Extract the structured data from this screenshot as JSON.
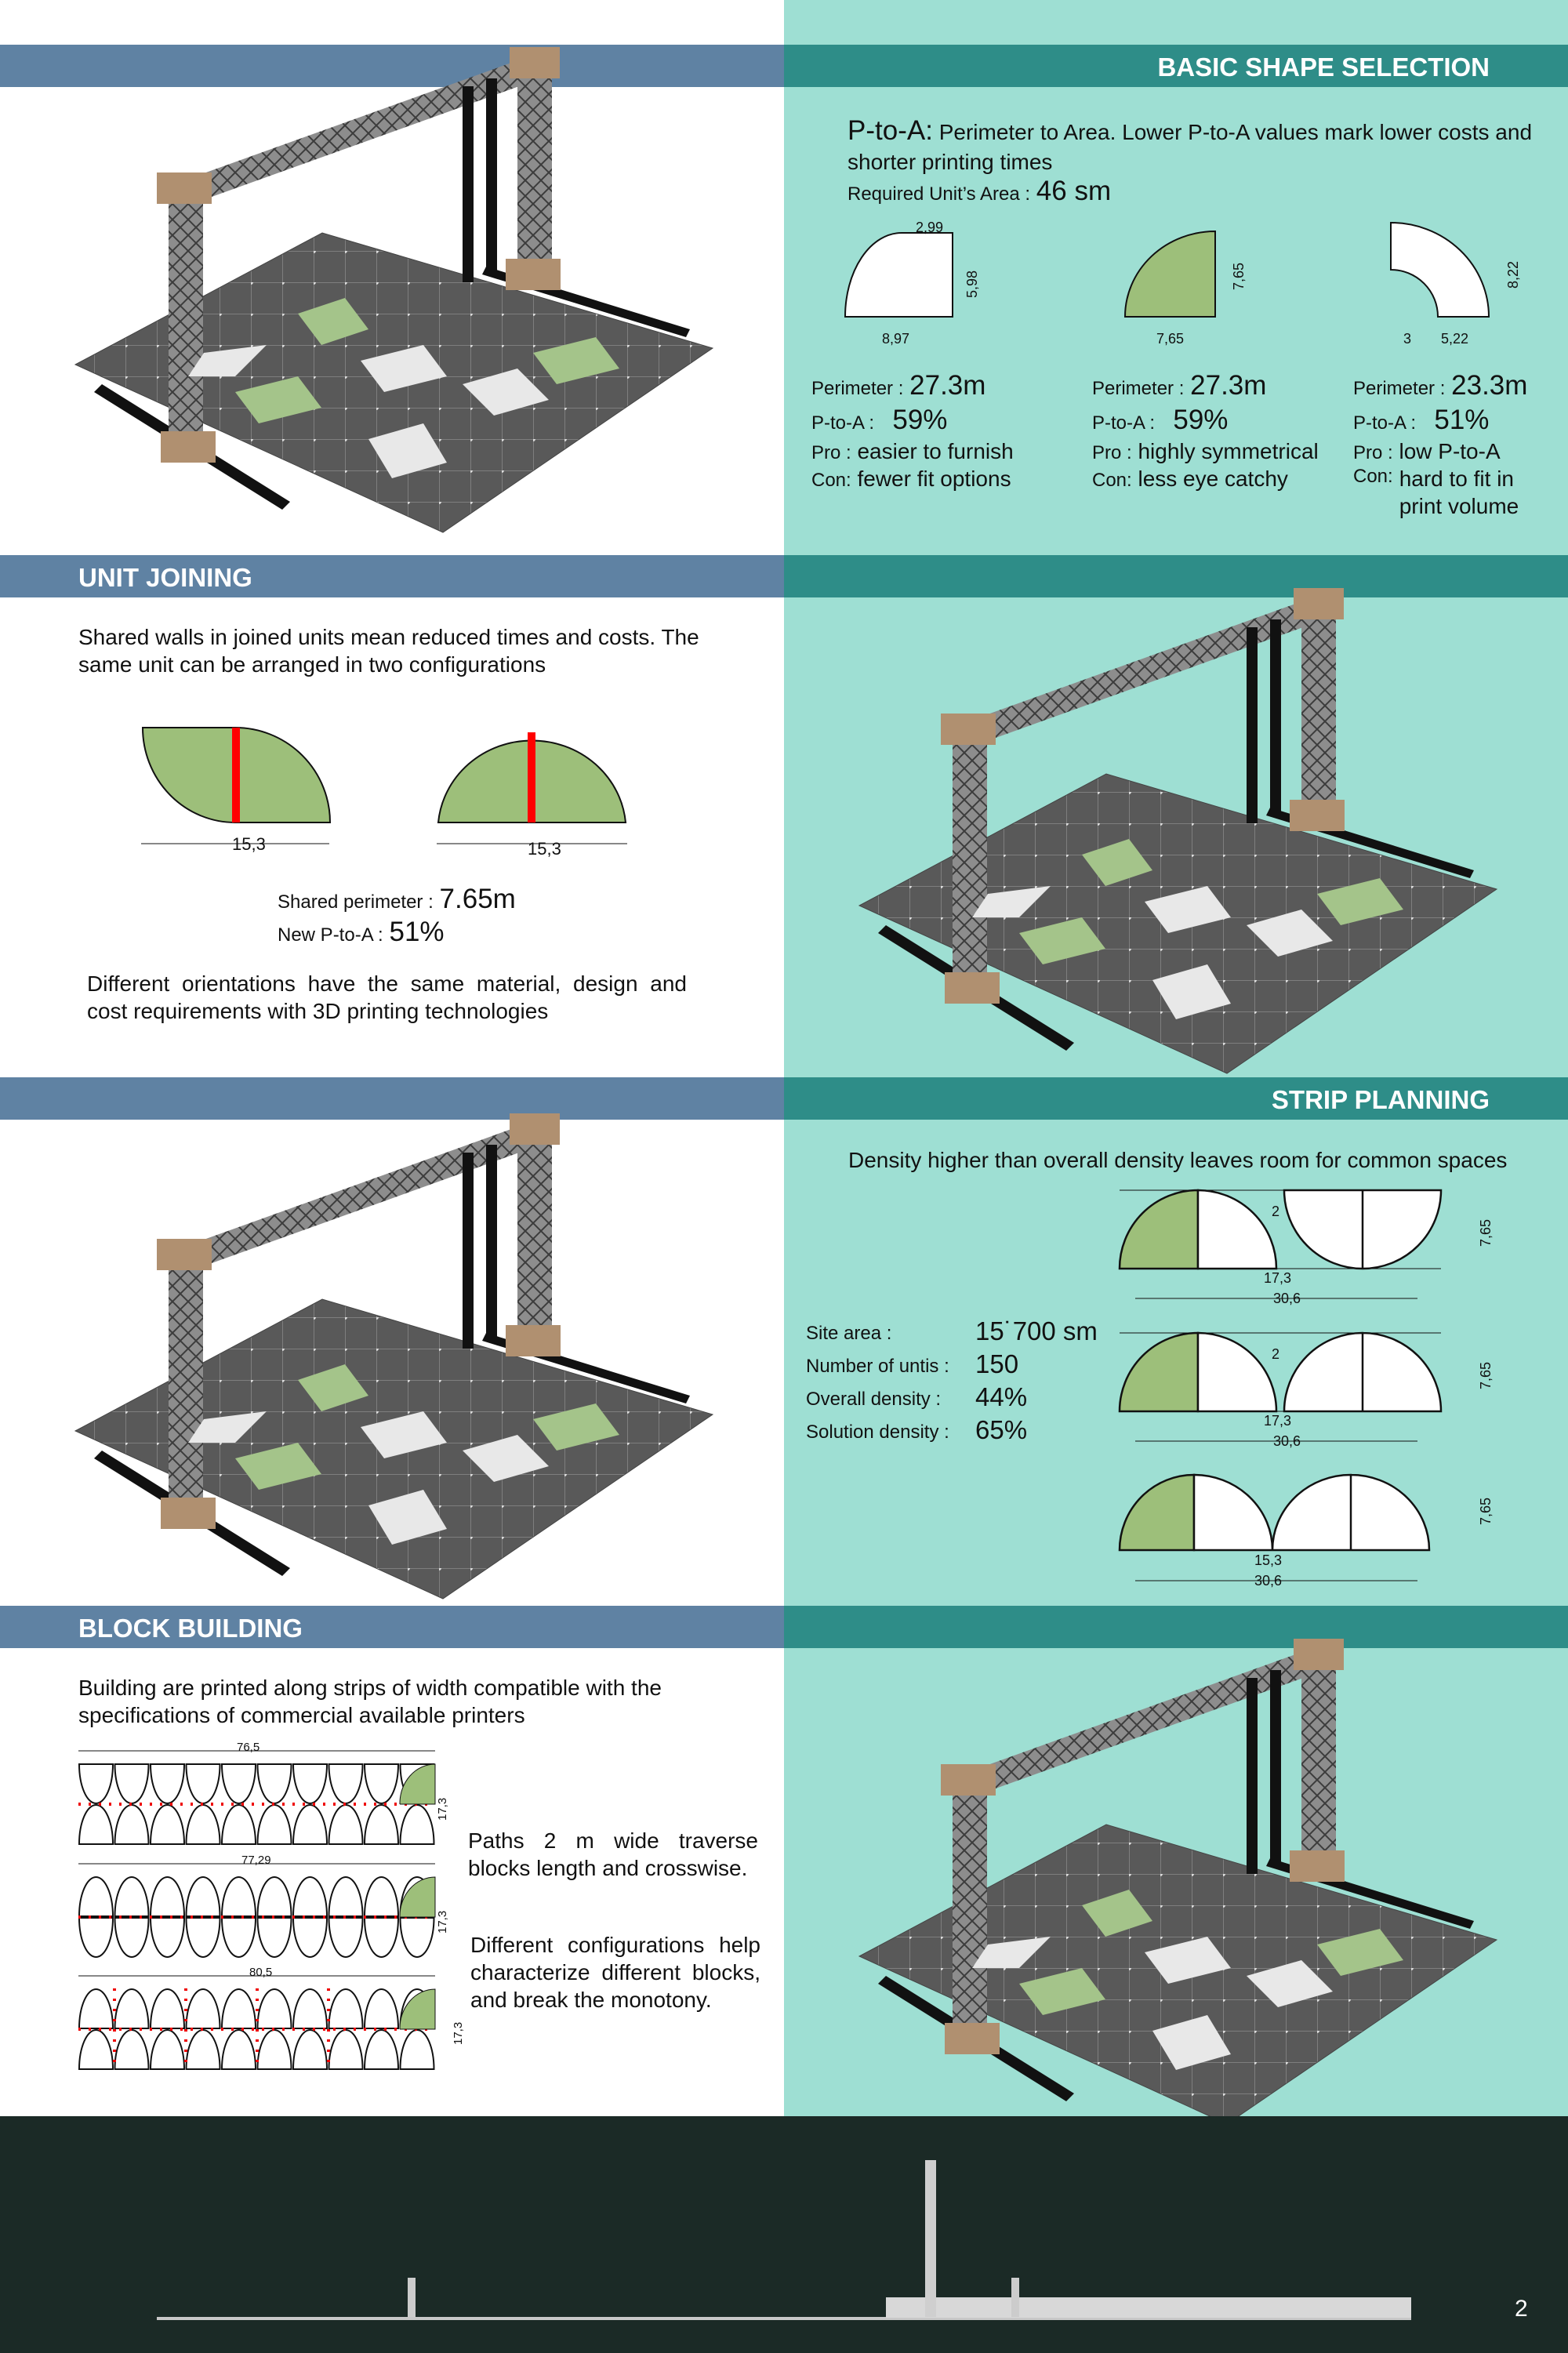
{
  "page_number": "2",
  "basic_shape": {
    "title": "BASIC SHAPE SELECTION",
    "term": "P-to-A:",
    "definition": "Perimeter to Area. Lower P-to-A values mark lower costs and shorter printing times",
    "area_label": "Required Unit’s Area :",
    "area_value": "46 sm",
    "shapes": [
      {
        "dims": [
          "2,99",
          "5,98",
          "8,97"
        ],
        "perimeter_label": "Perimeter :",
        "perimeter": "27.3m",
        "pta_label": "P-to-A :",
        "pta": "59%",
        "pro_label": "Pro :",
        "pro": "easier to furnish",
        "con_label": "Con:",
        "con": "fewer fit options"
      },
      {
        "dims": [
          "7,65",
          "7,65"
        ],
        "perimeter_label": "Perimeter :",
        "perimeter": "27.3m",
        "pta_label": "P-to-A :",
        "pta": "59%",
        "pro_label": "Pro :",
        "pro": "highly symmetrical",
        "con_label": "Con:",
        "con": "less eye catchy"
      },
      {
        "dims": [
          "8,22",
          "3",
          "5,22"
        ],
        "perimeter_label": "Perimeter :",
        "perimeter": "23.3m",
        "pta_label": "P-to-A :",
        "pta": "51%",
        "pro_label": "Pro :",
        "pro": "low P-to-A",
        "con_label": "Con:",
        "con": "hard to fit in print volume"
      }
    ]
  },
  "unit_joining": {
    "title": "UNIT JOINING",
    "text": "Shared walls in joined units mean reduced times and costs. The same unit can be arranged in two configurations",
    "dims": [
      "15,3",
      "15,3"
    ],
    "shared_label": "Shared perimeter :",
    "shared_value": "7.65m",
    "new_pta_label": "New P-to-A :",
    "new_pta_value": "51%",
    "note": "Different orientations have the same material, design and cost requirements with 3D printing technologies"
  },
  "strip_planning": {
    "title": "STRIP PLANNING",
    "text": "Density higher than overall density leaves room for common spaces",
    "stats": [
      {
        "label": "Site area :",
        "value": "15˙700 sm"
      },
      {
        "label": "Number of untis :",
        "value": "150"
      },
      {
        "label": "Overall density :",
        "value": "44%"
      },
      {
        "label": "Solution density :",
        "value": "65%"
      }
    ],
    "diagrams": [
      {
        "gap": "2",
        "unit": "17,3",
        "total": "30,6",
        "depth": "7,65"
      },
      {
        "gap": "2",
        "unit": "17,3",
        "total": "30,6",
        "depth": "7,65"
      },
      {
        "unit": "15,3",
        "total": "30,6",
        "depth": "7,65"
      }
    ]
  },
  "block_building": {
    "title": "BLOCK BUILDING",
    "text": "Building are printed along strips of width compatible with the specifications of commercial available printers",
    "diagrams": [
      {
        "length": "76,5",
        "width": "17,3"
      },
      {
        "length": "77,29",
        "width": "17,3"
      },
      {
        "length": "80,5",
        "width": "17,3"
      }
    ],
    "paths_text": "Paths 2 m wide traverse blocks length and crosswise.",
    "config_text": "Different configurations help characterize different blocks, and break the monotony."
  }
}
